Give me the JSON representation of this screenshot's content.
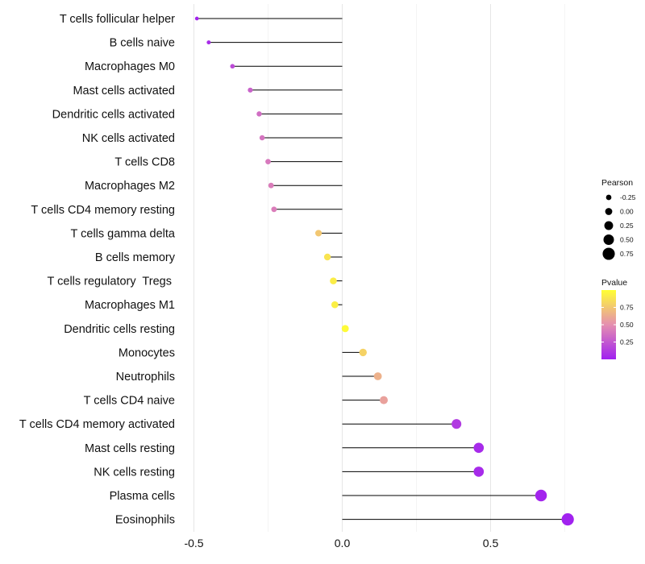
{
  "chart_data": {
    "type": "lollipop",
    "title": "",
    "xlabel": "",
    "ylabel": "",
    "xlim": [
      -0.5,
      0.75
    ],
    "x_ticks": [
      -0.5,
      0.0,
      0.5
    ],
    "x_tick_labels": [
      "-0.5",
      "0.0",
      "0.5"
    ],
    "categories": [
      "T cells follicular helper",
      "B cells naive",
      "Macrophages M0",
      "Mast cells activated",
      "Dendritic cells activated",
      "NK cells activated",
      "T cells CD8",
      "Macrophages M2",
      "T cells CD4 memory resting",
      "T cells gamma delta",
      "B cells memory",
      "T cells regulatory  Tregs ",
      "Macrophages M1",
      "Dendritic cells resting",
      "Monocytes",
      "Neutrophils",
      "T cells CD4 naive",
      "T cells CD4 memory activated",
      "Mast cells resting",
      "NK cells resting",
      "Plasma cells",
      "Eosinophils"
    ],
    "values": [
      -0.49,
      -0.45,
      -0.37,
      -0.31,
      -0.28,
      -0.27,
      -0.25,
      -0.24,
      -0.23,
      -0.08,
      -0.05,
      -0.03,
      -0.025,
      0.01,
      0.07,
      0.12,
      0.14,
      0.385,
      0.46,
      0.46,
      0.67,
      0.76
    ],
    "pvalues": [
      0.02,
      0.06,
      0.2,
      0.3,
      0.35,
      0.38,
      0.4,
      0.42,
      0.42,
      0.75,
      0.88,
      0.92,
      0.93,
      0.98,
      0.8,
      0.65,
      0.58,
      0.12,
      0.05,
      0.05,
      0.02,
      0.01
    ],
    "legend": {
      "size_title": "Pearson",
      "size_values": [
        -0.25,
        0.0,
        0.25,
        0.5,
        0.75
      ],
      "size_labels": [
        "-0.25",
        "0.00",
        "0.25",
        "0.50",
        "0.75"
      ],
      "color_title": "Pvalue",
      "color_values": [
        0.25,
        0.5,
        0.75
      ],
      "color_labels": [
        "0.25",
        "0.50",
        "0.75"
      ],
      "color_low": "#a020f0",
      "color_high": "#ffff33",
      "color_range": [
        0.0,
        1.0
      ]
    }
  }
}
